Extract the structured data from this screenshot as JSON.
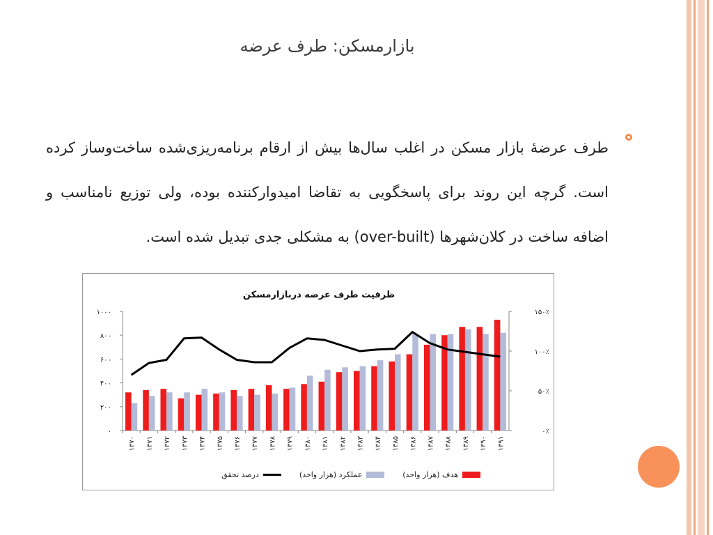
{
  "slide": {
    "title": "بازارمسکن: طرف عرضه",
    "bullet": "طرف عرضۀ بازار مسکن در اغلب سال‌ها بیش از ارقام برنامه‌ریزی‌شده ساخت‌وساز کرده است. گرچه این روند برای پاسخگویی به تقاضا امیدوارکننده بوده، ولی توزیع نامناسب و اضافه ساخت در کلان‌شهرها (over-built) به مشکلی جدی تبدیل شده است."
  },
  "colors": {
    "accent_orange": "#f8915a",
    "target_bar": "#ee1c1c",
    "actual_bar": "#b3bbd9",
    "ratio_line": "#000000"
  },
  "chart_data": {
    "type": "bar",
    "title": "ظرفیت طرف عرضه دربازارمسکن",
    "categories": [
      "۱۳۷۰",
      "۱۳۷۱",
      "۱۳۷۲",
      "۱۳۷۳",
      "۱۳۷۴",
      "۱۳۷۵",
      "۱۳۷۶",
      "۱۳۷۷",
      "۱۳۷۸",
      "۱۳۷۹",
      "۱۳۸۰",
      "۱۳۸۱",
      "۱۳۸۲",
      "۱۳۸۳",
      "۱۳۸۴",
      "۱۳۸۵",
      "۱۳۸۶",
      "۱۳۸۷",
      "۱۳۸۸",
      "۱۳۸۹",
      "۱۳۹۰",
      "۱۳۹۱"
    ],
    "series": [
      {
        "name": "هدف (هزار واحد)",
        "axis": "left",
        "values": [
          320,
          340,
          350,
          270,
          300,
          310,
          340,
          350,
          380,
          350,
          390,
          410,
          490,
          500,
          540,
          580,
          640,
          720,
          800,
          870,
          870,
          930
        ]
      },
      {
        "name": "عملکرد (هزار واحد)",
        "axis": "left",
        "values": [
          230,
          290,
          320,
          320,
          350,
          320,
          290,
          300,
          310,
          360,
          460,
          510,
          530,
          540,
          590,
          640,
          810,
          810,
          810,
          850,
          810,
          820
        ]
      },
      {
        "name": "درصد تحقق",
        "axis": "right",
        "type": "line",
        "values": [
          70,
          85,
          89,
          116,
          117,
          102,
          89,
          86,
          86,
          104,
          116,
          114,
          107,
          100,
          102,
          103,
          124,
          110,
          102,
          99,
          96,
          93
        ]
      }
    ],
    "ylim_left": [
      0,
      1000
    ],
    "yticks_left": [
      "۰",
      "۲۰۰",
      "۴۰۰",
      "۶۰۰",
      "۸۰۰",
      "۱۰۰۰"
    ],
    "ylim_right": [
      0,
      150
    ],
    "yticks_right": [
      "۰٪",
      "۵۰٪",
      "۱۰۰٪",
      "۱۵۰٪"
    ],
    "grid": false,
    "legend_position": "bottom"
  }
}
